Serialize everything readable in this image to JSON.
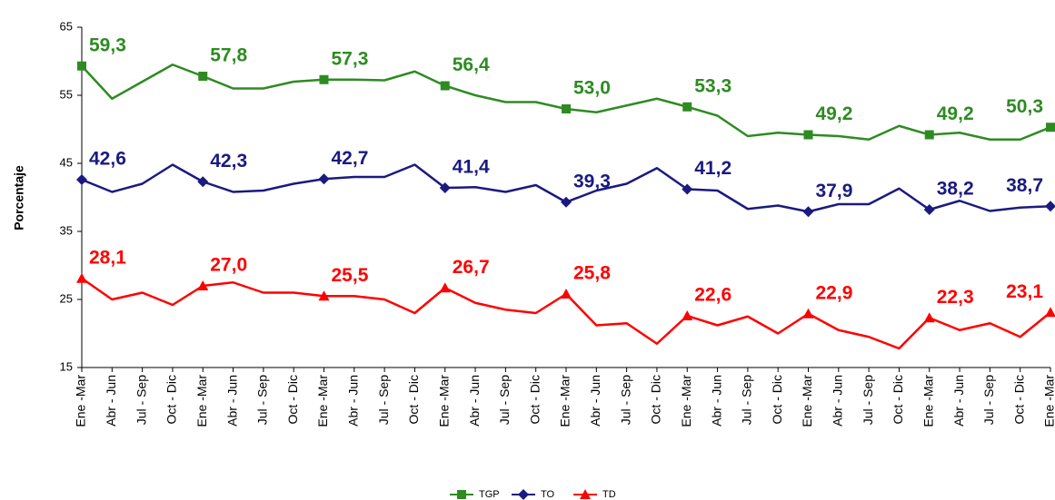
{
  "chart_data": {
    "type": "line",
    "y_label": "Porcentaje",
    "categories": [
      "Ene -Mar",
      "Abr - Jun",
      "Jul - Sep",
      "Oct - Dic",
      "Ene -Mar",
      "Abr - Jun",
      "Jul - Sep",
      "Oct - Dic",
      "Ene -Mar",
      "Abr - Jun",
      "Jul - Sep",
      "Oct - Dic",
      "Ene -Mar",
      "Abr - Jun",
      "Jul - Sep",
      "Oct - Dic",
      "Ene -Mar",
      "Abr - Jun",
      "Jul - Sep",
      "Oct - Dic",
      "Ene -Mar",
      "Abr - Jun",
      "Jul - Sep",
      "Oct - Dic",
      "Ene -Mar",
      "Abr - Jun",
      "Jul - Sep",
      "Oct - Dic",
      "Ene -Mar",
      "Abr - Jun",
      "Jul - Sep",
      "Oct - Dic",
      "Ene -Mar"
    ],
    "series": [
      {
        "name": "TGP",
        "color": "#2e8b22",
        "marker": "square",
        "values": [
          59.3,
          54.5,
          57,
          59.5,
          57.8,
          56,
          56,
          57,
          57.3,
          57.3,
          57.2,
          58.5,
          56.4,
          55,
          54,
          54,
          53.0,
          52.5,
          53.5,
          54.5,
          53.3,
          52,
          49,
          49.5,
          49.2,
          49,
          48.5,
          50.5,
          49.2,
          49.5,
          48.5,
          48.5,
          50.3
        ],
        "value_labels": [
          "59,3",
          null,
          null,
          null,
          "57,8",
          null,
          null,
          null,
          "57,3",
          null,
          null,
          null,
          "56,4",
          null,
          null,
          null,
          "53,0",
          null,
          null,
          null,
          "53,3",
          null,
          null,
          null,
          "49,2",
          null,
          null,
          null,
          "49,2",
          null,
          null,
          null,
          "50,3"
        ]
      },
      {
        "name": "TO",
        "color": "#1a1a80",
        "marker": "diamond",
        "values": [
          42.6,
          40.8,
          42,
          44.8,
          42.3,
          40.8,
          41,
          42,
          42.7,
          43,
          43,
          44.8,
          41.4,
          41.5,
          40.8,
          41.8,
          39.3,
          41,
          42,
          44.3,
          41.2,
          41,
          38.3,
          38.8,
          37.9,
          39,
          39,
          41.3,
          38.2,
          39.5,
          38,
          38.5,
          38.7
        ],
        "value_labels": [
          "42,6",
          null,
          null,
          null,
          "42,3",
          null,
          null,
          null,
          "42,7",
          null,
          null,
          null,
          "41,4",
          null,
          null,
          null,
          "39,3",
          null,
          null,
          null,
          "41,2",
          null,
          null,
          null,
          "37,9",
          null,
          null,
          null,
          "38,2",
          null,
          null,
          null,
          "38,7"
        ]
      },
      {
        "name": "TD",
        "color": "#ff0000",
        "marker": "triangle",
        "values": [
          28.1,
          25,
          26,
          24.2,
          27.0,
          27.5,
          26,
          26,
          25.5,
          25.5,
          25,
          23,
          26.7,
          24.5,
          23.5,
          23,
          25.8,
          21.2,
          21.5,
          18.5,
          22.6,
          21.2,
          22.5,
          20,
          22.9,
          20.5,
          19.5,
          17.8,
          22.3,
          20.5,
          21.5,
          19.5,
          23.1
        ],
        "value_labels": [
          "28,1",
          null,
          null,
          null,
          "27,0",
          null,
          null,
          null,
          "25,5",
          null,
          null,
          null,
          "26,7",
          null,
          null,
          null,
          "25,8",
          null,
          null,
          null,
          "22,6",
          null,
          null,
          null,
          "22,9",
          null,
          null,
          null,
          "22,3",
          null,
          null,
          null,
          "23,1"
        ]
      }
    ],
    "ylim": [
      15,
      65
    ],
    "yticks": [
      15,
      25,
      35,
      45,
      55,
      65
    ],
    "grid": false,
    "legend": "bottom"
  }
}
